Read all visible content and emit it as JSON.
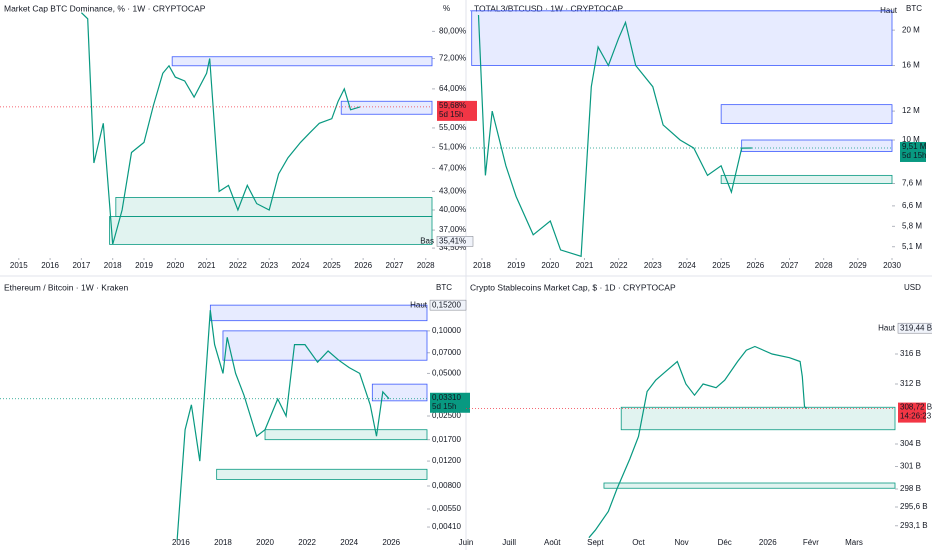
{
  "chart_data": [
    {
      "type": "line",
      "title": "Market Cap BTC Dominance, % · 1W · CRYPTOCAP",
      "unit": "%",
      "log_scale": true,
      "color": "#089981",
      "x": [
        2017.0,
        2017.2,
        2017.4,
        2017.7,
        2018.0,
        2018.3,
        2018.6,
        2019.0,
        2019.3,
        2019.6,
        2019.8,
        2020.0,
        2020.3,
        2020.6,
        2021.0,
        2021.1,
        2021.4,
        2021.7,
        2022.0,
        2022.3,
        2022.6,
        2023.0,
        2023.3,
        2023.6,
        2024.0,
        2024.3,
        2024.6,
        2025.0,
        2025.2,
        2025.4,
        2025.6,
        2025.9
      ],
      "values": [
        86,
        84,
        48,
        56,
        35,
        40,
        50,
        52,
        60,
        68,
        70,
        67,
        66,
        62,
        68,
        72,
        43,
        44,
        40,
        44,
        41,
        40,
        46,
        49,
        52,
        54,
        56,
        57,
        61,
        64,
        59,
        59.68
      ],
      "xlim": [
        2014.4,
        2028.2
      ],
      "xticks": [
        2015,
        2016,
        2017,
        2018,
        2019,
        2020,
        2021,
        2022,
        2023,
        2024,
        2025,
        2026,
        2027,
        2028
      ],
      "ylim": [
        33.2,
        87.6
      ],
      "yticks": [
        {
          "value": 80,
          "label": "80,00%"
        },
        {
          "value": 72,
          "label": "72,00%"
        },
        {
          "value": 64,
          "label": "64,00%"
        },
        {
          "value": 55,
          "label": "55,00%"
        },
        {
          "value": 51,
          "label": "51,00%"
        },
        {
          "value": 47,
          "label": "47,00%"
        },
        {
          "value": 43,
          "label": "43,00%"
        },
        {
          "value": 40,
          "label": "40,00%"
        },
        {
          "value": 37,
          "label": "37,00%"
        },
        {
          "value": 34.5,
          "label": "34,50%"
        }
      ],
      "last_price": {
        "value": 59.68,
        "label": "59,68%",
        "countdown": "5d 15h",
        "color": "#f23645"
      },
      "extreme": {
        "text": "Bas",
        "value": 35.41,
        "label": "35,41%"
      },
      "zones": [
        {
          "start": 2019.9,
          "from": 70,
          "to": 72.5,
          "color": "#3d5afe"
        },
        {
          "start": 2025.3,
          "from": 58,
          "to": 61,
          "color": "#3d5afe"
        },
        {
          "start": 2018.1,
          "from": 39,
          "to": 42,
          "color": "#089981"
        },
        {
          "start": 2017.9,
          "from": 35,
          "to": 39,
          "color": "#089981"
        }
      ]
    },
    {
      "type": "line",
      "title": "TOTAL3/BTCUSD · 1W · CRYPTOCAP",
      "unit": "BTC",
      "log_scale": true,
      "color": "#089981",
      "x": [
        2017.9,
        2018.1,
        2018.3,
        2018.7,
        2019.0,
        2019.5,
        2020.0,
        2020.3,
        2020.9,
        2021.2,
        2021.4,
        2021.7,
        2022.0,
        2022.2,
        2022.5,
        2023.0,
        2023.3,
        2023.8,
        2024.2,
        2024.6,
        2025.0,
        2025.3,
        2025.6,
        2025.9
      ],
      "values": [
        22000000,
        8000000,
        12000000,
        8500000,
        7000000,
        5500000,
        6000000,
        5000000,
        4800000,
        14000000,
        18000000,
        16000000,
        19000000,
        21000000,
        16000000,
        14000000,
        11000000,
        10000000,
        9500000,
        8000000,
        8500000,
        7200000,
        9500000,
        9510000
      ],
      "xlim": [
        2017.65,
        2030.0
      ],
      "xticks": [
        2018,
        2019,
        2020,
        2021,
        2022,
        2023,
        2024,
        2025,
        2026,
        2027,
        2028,
        2029,
        2030
      ],
      "ylim": [
        4750000,
        23000000
      ],
      "yticks": [
        {
          "value": 20000000,
          "label": "20 M"
        },
        {
          "value": 16000000,
          "label": "16 M"
        },
        {
          "value": 12000000,
          "label": "12 M"
        },
        {
          "value": 10000000,
          "label": "10 M"
        },
        {
          "value": 7600000,
          "label": "7,6 M"
        },
        {
          "value": 6600000,
          "label": "6,6 M"
        },
        {
          "value": 5800000,
          "label": "5,8 M"
        },
        {
          "value": 5100000,
          "label": "5,1 M"
        }
      ],
      "last_price": {
        "value": 9510000,
        "label": "9,51 M",
        "countdown": "5d 15h",
        "color": "#089981"
      },
      "extreme": {
        "text": "Haut",
        "value": 22600000
      },
      "zones": [
        {
          "start": 2017.7,
          "from": 16000000,
          "to": 22600000,
          "color": "#3d5afe"
        },
        {
          "start": 2025.0,
          "from": 11100000,
          "to": 12500000,
          "color": "#3d5afe"
        },
        {
          "start": 2025.6,
          "from": 9300000,
          "to": 10000000,
          "color": "#3d5afe"
        },
        {
          "start": 2025.0,
          "from": 7600000,
          "to": 8000000,
          "color": "#089981"
        }
      ]
    },
    {
      "type": "line",
      "title": "Ethereum / Bitcoin · 1W · Kraken",
      "unit": "BTC",
      "log_scale": true,
      "color": "#089981",
      "x": [
        2015.8,
        2016.2,
        2016.5,
        2016.9,
        2017.4,
        2017.6,
        2018.0,
        2018.2,
        2018.6,
        2019.0,
        2019.6,
        2020.0,
        2020.6,
        2021.0,
        2021.4,
        2021.9,
        2022.5,
        2023.0,
        2023.5,
        2024.0,
        2024.5,
        2025.0,
        2025.3,
        2025.6,
        2025.9
      ],
      "values": [
        0.003,
        0.02,
        0.03,
        0.012,
        0.14,
        0.08,
        0.05,
        0.09,
        0.05,
        0.035,
        0.018,
        0.02,
        0.033,
        0.025,
        0.08,
        0.08,
        0.06,
        0.072,
        0.062,
        0.055,
        0.05,
        0.03,
        0.018,
        0.037,
        0.0331
      ],
      "xlim": [
        2007.4,
        2027.7
      ],
      "xticks": [
        2016,
        2018,
        2020,
        2022,
        2024,
        2026
      ],
      "ylim": [
        0.00332,
        0.211
      ],
      "yticks": [
        {
          "value": 0.1,
          "label": "0,10000"
        },
        {
          "value": 0.07,
          "label": "0,07000"
        },
        {
          "value": 0.05,
          "label": "0,05000"
        },
        {
          "value": 0.025,
          "label": "0,02500"
        },
        {
          "value": 0.017,
          "label": "0,01700"
        },
        {
          "value": 0.012,
          "label": "0,01200"
        },
        {
          "value": 0.008,
          "label": "0,00800"
        },
        {
          "value": 0.0055,
          "label": "0,00550"
        },
        {
          "value": 0.0041,
          "label": "0,00410"
        }
      ],
      "last_price": {
        "value": 0.0331,
        "label": "0,03310",
        "countdown": "5d 15h",
        "color": "#089981"
      },
      "extreme": {
        "text": "Haut",
        "value": 0.152,
        "label": "0,15200"
      },
      "zones": [
        {
          "start": 2017.4,
          "from": 0.118,
          "to": 0.152,
          "color": "#3d5afe"
        },
        {
          "start": 2018.0,
          "from": 0.062,
          "to": 0.1,
          "color": "#3d5afe"
        },
        {
          "start": 2025.1,
          "from": 0.032,
          "to": 0.042,
          "color": "#3d5afe"
        },
        {
          "start": 2020.0,
          "from": 0.017,
          "to": 0.02,
          "color": "#089981"
        },
        {
          "start": 2017.7,
          "from": 0.0089,
          "to": 0.0105,
          "color": "#089981"
        }
      ]
    },
    {
      "type": "line",
      "title": "Crypto Stablecoins Market Cap, $ · 1D · CRYPTOCAP",
      "unit": "USD",
      "log_scale": false,
      "color": "#089981",
      "x": [
        2.85,
        3.0,
        3.3,
        3.5,
        3.8,
        4.0,
        4.2,
        4.4,
        4.6,
        4.9,
        5.1,
        5.3,
        5.5,
        5.8,
        6.0,
        6.3,
        6.5,
        6.7,
        7.1,
        7.5,
        7.75,
        7.8,
        7.85,
        7.9
      ],
      "values": [
        291.5,
        292.5,
        295,
        298,
        302,
        305,
        311,
        312.5,
        313.5,
        315,
        312,
        310.5,
        312,
        311.5,
        312.5,
        315,
        316.5,
        317,
        316,
        315.5,
        315,
        313,
        309,
        308.72
      ],
      "xlim": [
        0,
        9.95
      ],
      "xticks": [
        {
          "value": 0,
          "label": "Juin"
        },
        {
          "value": 1,
          "label": "Juill"
        },
        {
          "value": 2,
          "label": "Août"
        },
        {
          "value": 3,
          "label": "Sept"
        },
        {
          "value": 4,
          "label": "Oct"
        },
        {
          "value": 5,
          "label": "Nov"
        },
        {
          "value": 6,
          "label": "Déc"
        },
        {
          "value": 7,
          "label": "2026"
        },
        {
          "value": 8,
          "label": "Févr"
        },
        {
          "value": 9,
          "label": "Mars"
        }
      ],
      "ylim": [
        291.2,
        323.2
      ],
      "yticks": [
        {
          "value": 316,
          "label": "316 B"
        },
        {
          "value": 312,
          "label": "312 B"
        },
        {
          "value": 304,
          "label": "304 B"
        },
        {
          "value": 301,
          "label": "301 B"
        },
        {
          "value": 298,
          "label": "298 B"
        },
        {
          "value": 295.6,
          "label": "295,6 B"
        },
        {
          "value": 293.1,
          "label": "293,1 B"
        }
      ],
      "last_price": {
        "value": 308.72,
        "label": "308,72 B",
        "countdown": "14:26:23",
        "color": "#f23645"
      },
      "extreme": {
        "text": "Haut",
        "value": 319.44,
        "label": "319,44 B"
      },
      "zones": [
        {
          "start": 3.6,
          "from": 305.9,
          "to": 308.9,
          "color": "#089981"
        },
        {
          "start": 3.2,
          "from": 298.1,
          "to": 298.8,
          "color": "#089981"
        }
      ]
    }
  ]
}
